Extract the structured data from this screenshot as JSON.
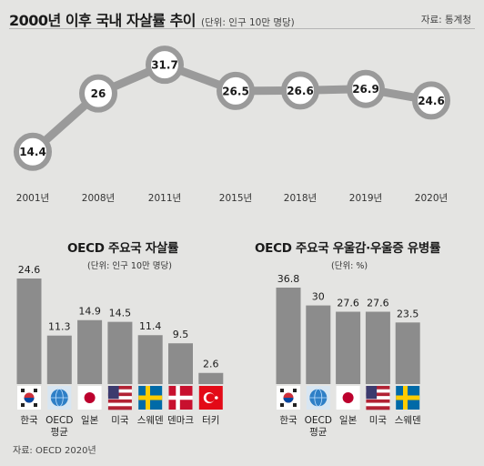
{
  "header": {
    "title": "2000년 이후 국내 자살률 추이",
    "unit": "(단위: 인구 10만 명당)",
    "source": "자료: 통계청"
  },
  "colors": {
    "background": "#e4e4e2",
    "line": "#9a9a9a",
    "bar": "#8c8c8c",
    "bubble_fill": "#ffffff",
    "bubble_ring": "#9a9a9a"
  },
  "chart_data": [
    {
      "type": "line",
      "title": "2000년 이후 국내 자살률 추이",
      "unit": "(단위: 인구 10만 명당)",
      "categories": [
        "2001년",
        "2008년",
        "2011년",
        "2015년",
        "2018년",
        "2019년",
        "2020년"
      ],
      "values": [
        14.4,
        26,
        31.7,
        26.5,
        26.6,
        26.9,
        24.6
      ],
      "value_labels": [
        "14.4",
        "26",
        "31.7",
        "26.5",
        "26.6",
        "26.9",
        "24.6"
      ],
      "ylim": [
        12,
        33
      ]
    },
    {
      "type": "bar",
      "title": "OECD 주요국 자살률",
      "unit": "(단위: 인구 10만 명당)",
      "categories": [
        "한국",
        "OECD 평균",
        "일본",
        "미국",
        "스웨덴",
        "덴마크",
        "터키"
      ],
      "values": [
        24.6,
        11.3,
        14.9,
        14.5,
        11.4,
        9.5,
        2.6
      ],
      "value_labels": [
        "24.6",
        "11.3",
        "14.9",
        "14.5",
        "11.4",
        "9.5",
        "2.6"
      ],
      "flags": [
        "korea-flag",
        "oecd-globe",
        "japan-flag",
        "usa-flag",
        "sweden-flag",
        "denmark-flag",
        "turkey-flag"
      ],
      "ylim": [
        0,
        24.6
      ]
    },
    {
      "type": "bar",
      "title": "OECD 주요국 우울감·우울증 유병률",
      "unit": "(단위: %)",
      "categories": [
        "한국",
        "OECD 평균",
        "일본",
        "미국",
        "스웨덴"
      ],
      "values": [
        36.8,
        30,
        27.6,
        27.6,
        23.5
      ],
      "value_labels": [
        "36.8",
        "30",
        "27.6",
        "27.6",
        "23.5"
      ],
      "flags": [
        "korea-flag",
        "oecd-globe",
        "japan-flag",
        "usa-flag",
        "sweden-flag"
      ],
      "ylim": [
        0,
        36.8
      ]
    }
  ],
  "footer": {
    "source": "자료: OECD 2020년"
  }
}
